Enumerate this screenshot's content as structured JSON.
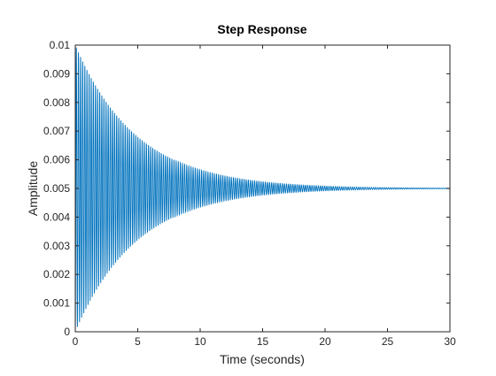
{
  "chart_data": {
    "type": "line",
    "title": "Step Response",
    "xlabel": "Time (seconds)",
    "ylabel": "Amplitude",
    "xlim": [
      0,
      30
    ],
    "ylim": [
      0,
      0.01
    ],
    "xticks": [
      "0",
      "5",
      "10",
      "15",
      "20",
      "25",
      "30"
    ],
    "yticks": [
      "0",
      "0.001",
      "0.002",
      "0.003",
      "0.004",
      "0.005",
      "0.006",
      "0.007",
      "0.008",
      "0.009",
      "0.01"
    ],
    "grid": false,
    "legend": "none",
    "series": [
      {
        "color": "#0072BD",
        "final_value": 0.005,
        "initial_value": 0,
        "first_peak": 0.0098,
        "decay_time_constant_s": 4.9,
        "oscillation_period_s": 0.17
      }
    ]
  },
  "colors": {
    "line": "#0072BD",
    "axes": "#262626",
    "background": "#ffffff"
  }
}
